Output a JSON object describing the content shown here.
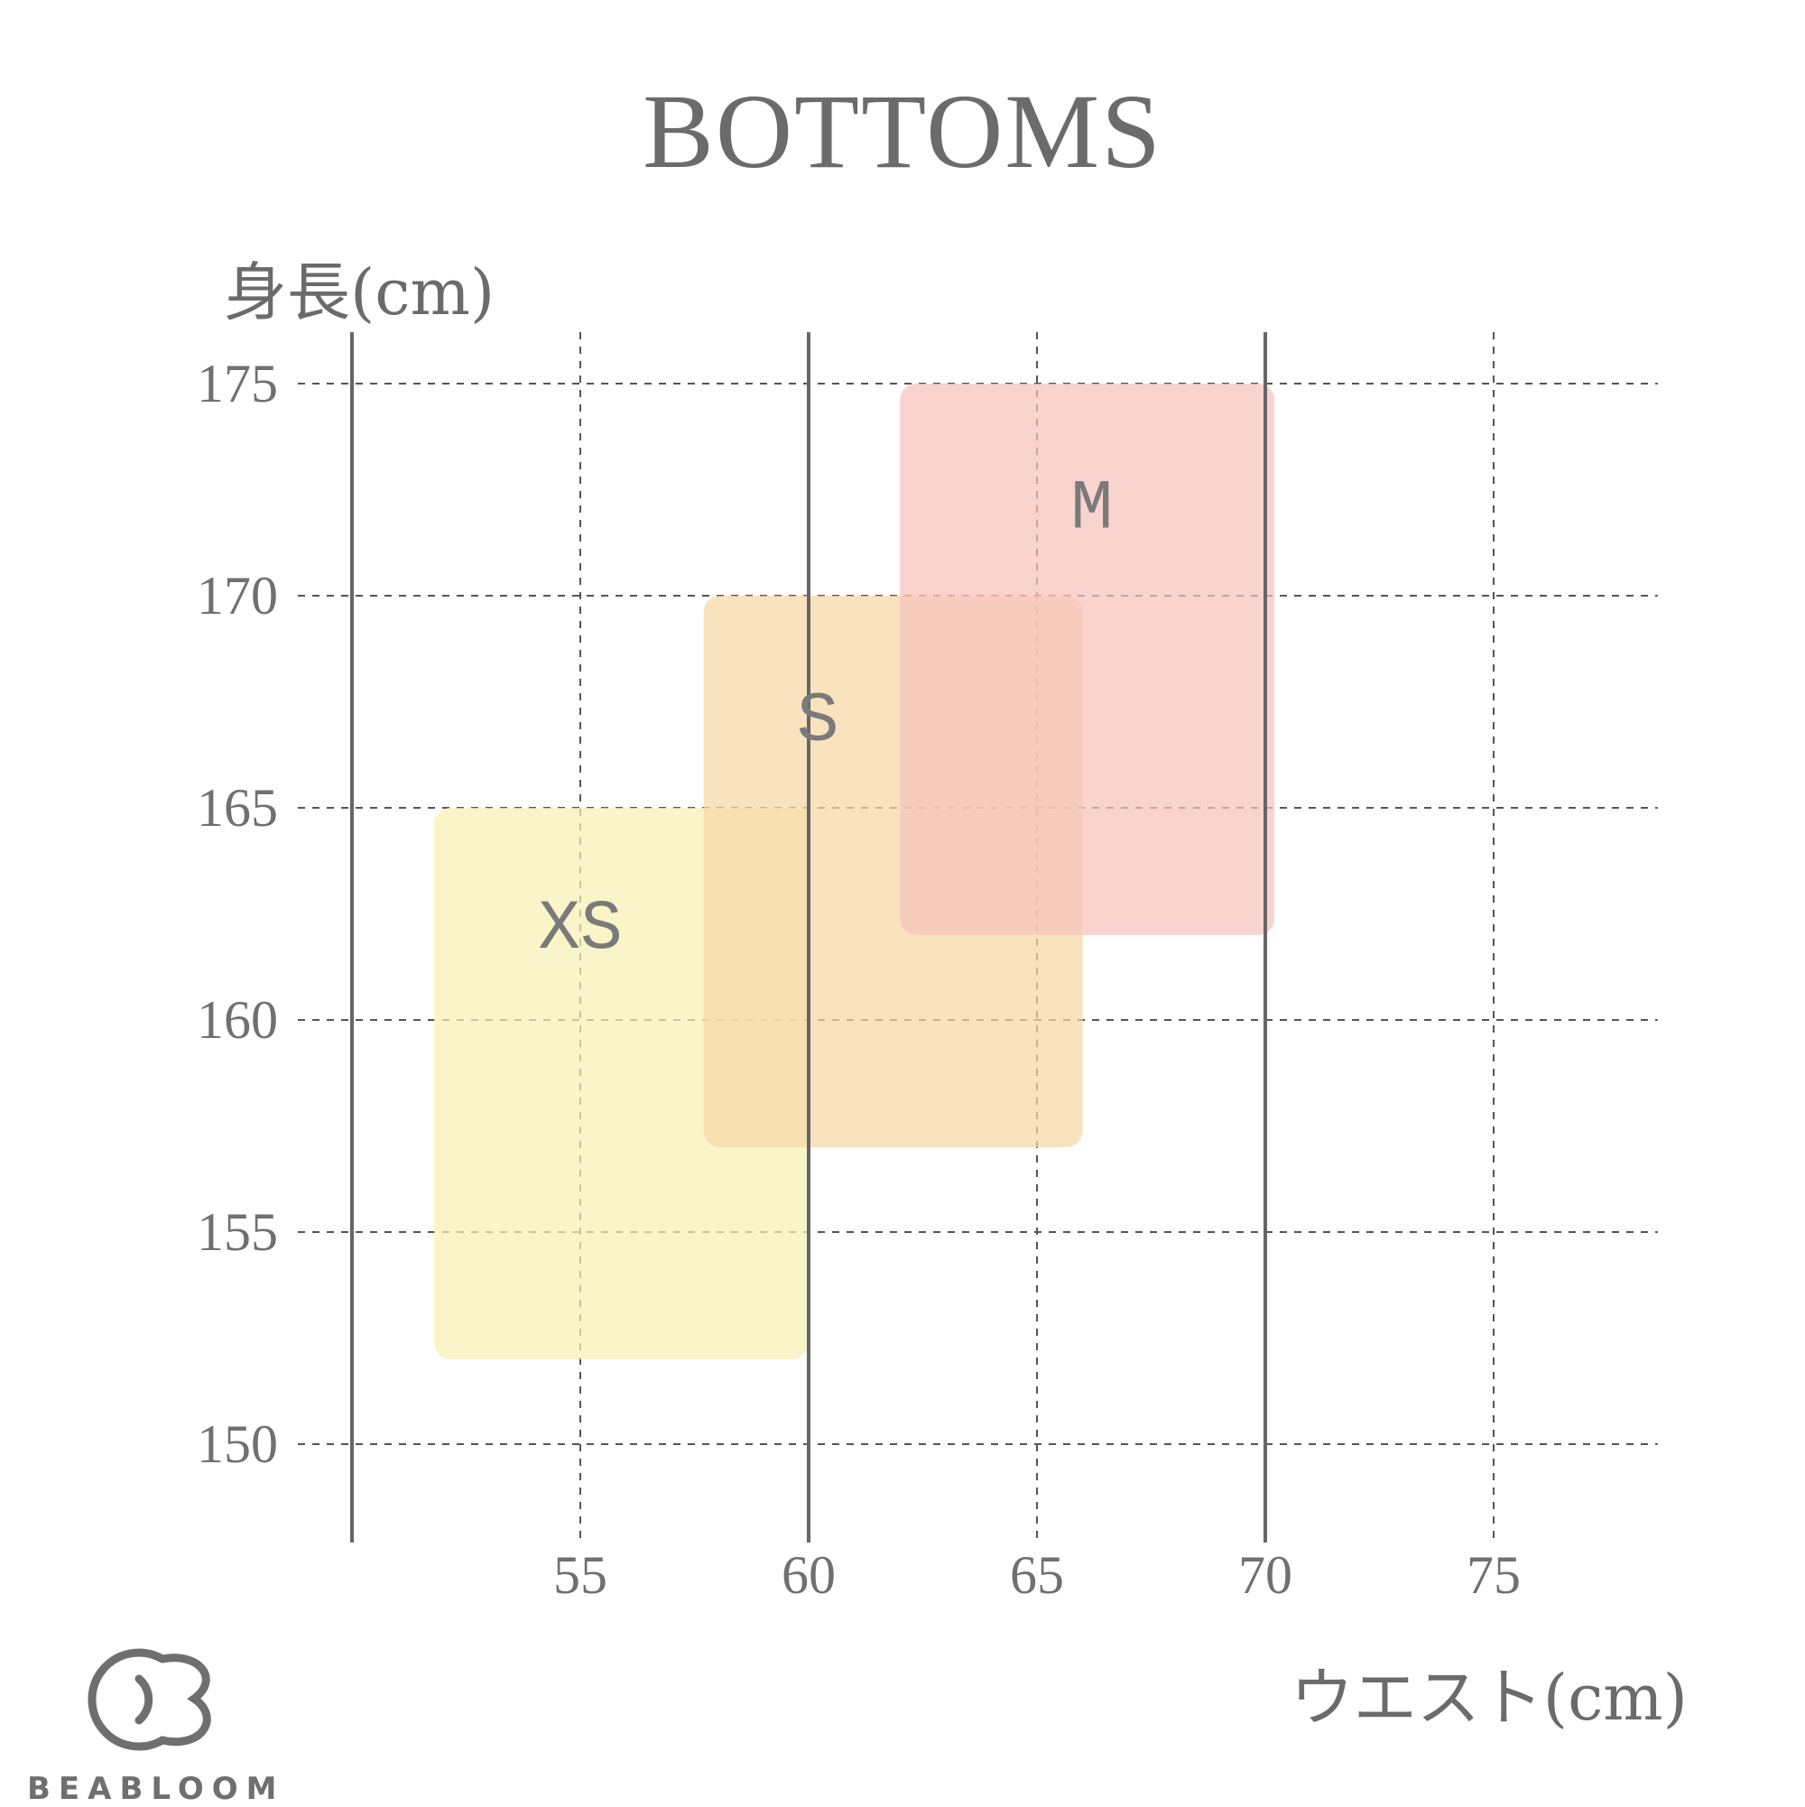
{
  "chart_data": {
    "type": "range-box",
    "title": "BOTTOMS",
    "xlabel": "ウエスト(cm)",
    "ylabel": "身長(cm)",
    "xlim": [
      50,
      78
    ],
    "ylim": [
      148,
      176
    ],
    "x_ticks": [
      55,
      60,
      65,
      70,
      75
    ],
    "y_ticks": [
      150,
      155,
      160,
      165,
      170,
      175
    ],
    "grid": true,
    "boxes": [
      {
        "name": "XS",
        "x": [
          51.8,
          60
        ],
        "y": [
          152,
          165
        ],
        "color": "#f7f1b4"
      },
      {
        "name": "S",
        "x": [
          57.7,
          66
        ],
        "y": [
          157,
          170
        ],
        "color": "#f7d8a6"
      },
      {
        "name": "M",
        "x": [
          62,
          70.2
        ],
        "y": [
          162,
          175
        ],
        "color": "#f6c3bd"
      }
    ]
  },
  "brand": {
    "name": "BEABLOOM",
    "logo_icon": "beabloom-logo-icon"
  },
  "colors": {
    "text": "#666666",
    "grid": "#555555",
    "axis_line": "#666666"
  }
}
